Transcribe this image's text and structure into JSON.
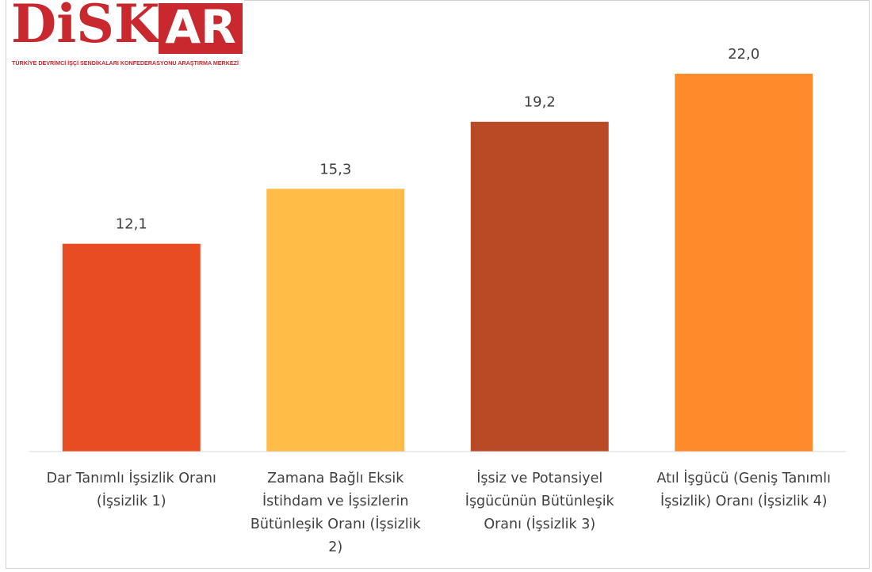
{
  "logo": {
    "left": "DiSK",
    "right": "AR",
    "subtitle": "TÜRKİYE DEVRİMCİ İŞÇİ SENDİKALARI KONFEDERASYONU ARAŞTIRMA MERKEZİ"
  },
  "chart_data": {
    "type": "bar",
    "categories": [
      "Dar Tanımlı İşsizlik Oranı (İşsizlik 1)",
      "Zamana Bağlı Eksik İstihdam ve İşsizlerin Bütünleşik Oranı (İşsizlik 2)",
      "İşsiz ve Potansiyel İşgücünün Bütünleşik Oranı (İşsizlik 3)",
      "Atıl İşgücü (Geniş Tanımlı İşsizlik) Oranı (İşsizlik 4)"
    ],
    "values": [
      12.1,
      15.3,
      19.2,
      22.0
    ],
    "value_labels": [
      "12,1",
      "15,3",
      "19,2",
      "22,0"
    ],
    "colors": [
      "#e84c22",
      "#ffbd48",
      "#b84a26",
      "#ff8a2b"
    ],
    "ylim": [
      0,
      25
    ]
  }
}
